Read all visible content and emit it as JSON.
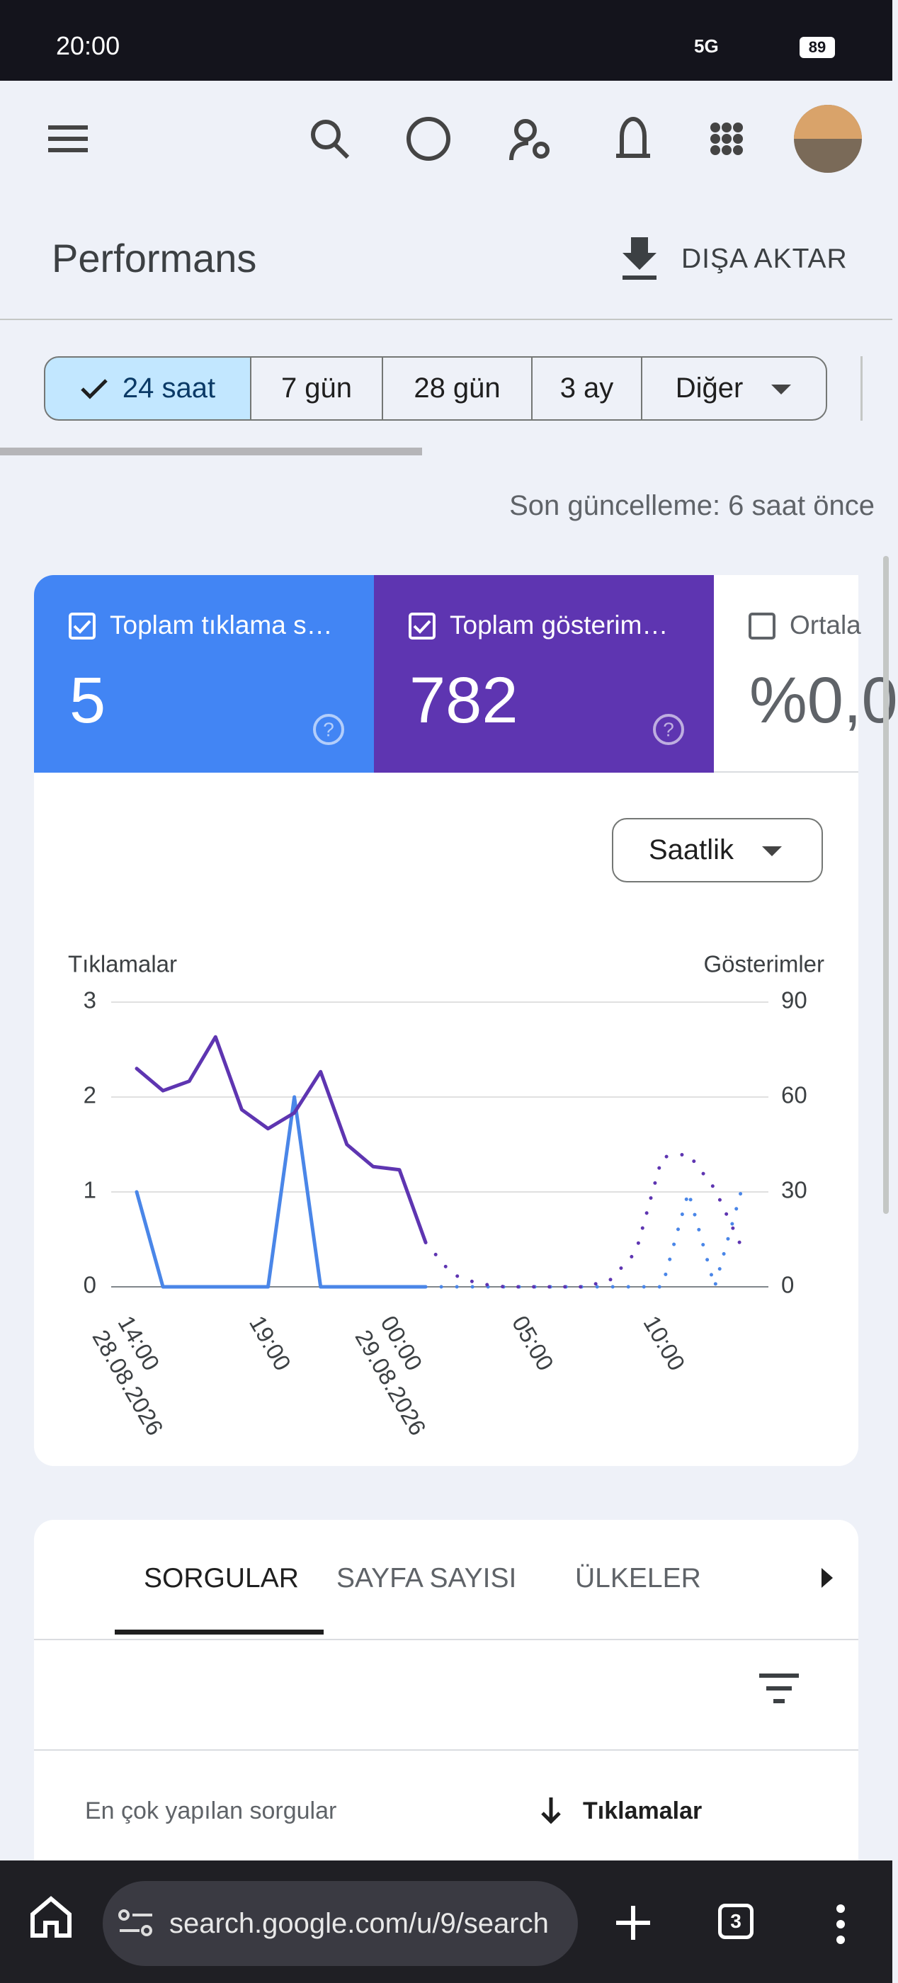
{
  "status_bar": {
    "time": "20:00",
    "network": "5G",
    "battery": "89"
  },
  "header": {
    "title": "Performans",
    "export": "DIŞA AKTAR"
  },
  "filters": {
    "options": [
      "24 saat",
      "7 gün",
      "28 gün",
      "3 ay",
      "Diğer"
    ],
    "selected": 0
  },
  "last_update": "Son güncelleme: 6 saat önce",
  "metrics": [
    {
      "label": "Toplam tıklama s…",
      "value": "5",
      "checked": true,
      "color": "#4285f4"
    },
    {
      "label": "Toplam gösterim…",
      "value": "782",
      "checked": true,
      "color": "#5e35b1"
    },
    {
      "label": "Ortala",
      "value": "%0,0",
      "checked": false
    }
  ],
  "granularity": "Saatlik",
  "chart": {
    "type": "line",
    "y_title": "Tıklamalar",
    "y2_title": "Gösterimler",
    "categories": [
      "14:00",
      null,
      null,
      null,
      null,
      "19:00",
      null,
      null,
      null,
      null,
      "00:00",
      null,
      null,
      null,
      null,
      "05:00",
      null,
      null,
      null,
      null,
      "10:00",
      null,
      null,
      null
    ],
    "dates": [
      "28.08.2026",
      null,
      null,
      null,
      null,
      null,
      null,
      null,
      null,
      null,
      "29.08.2026",
      null,
      null,
      null,
      null,
      null,
      null,
      null,
      null,
      null,
      null,
      null,
      null,
      null
    ],
    "ylim": [
      0,
      3
    ],
    "yticks": [
      0,
      1,
      2,
      3
    ],
    "y2lim": [
      0,
      90
    ],
    "y2ticks": [
      0,
      30,
      60,
      90
    ],
    "grid": true,
    "partial_from": 11,
    "series": [
      {
        "color": "#4a86e8",
        "values": [
          1,
          0,
          0,
          0,
          0,
          0,
          2,
          0,
          0,
          0,
          0,
          0,
          0,
          0,
          0,
          0,
          0,
          0,
          0,
          0,
          0,
          1,
          0,
          1
        ]
      },
      {
        "color": "#5e35b1",
        "axis": "y2",
        "values": [
          69,
          62,
          65,
          79,
          56,
          50,
          55,
          68,
          45,
          38,
          37,
          14,
          4,
          1,
          0,
          0,
          0,
          0,
          2,
          11,
          41,
          42,
          31,
          13
        ]
      }
    ]
  },
  "tabs": {
    "items": [
      "SORGULAR",
      "SAYFA SAYISI",
      "ÜLKELER"
    ],
    "selected": 0
  },
  "table": {
    "column_1": "En çok yapılan sorgular",
    "column_2": "Tıklamalar"
  },
  "browser": {
    "url": "search.google.com/u/9/search",
    "tab_count": "3"
  }
}
